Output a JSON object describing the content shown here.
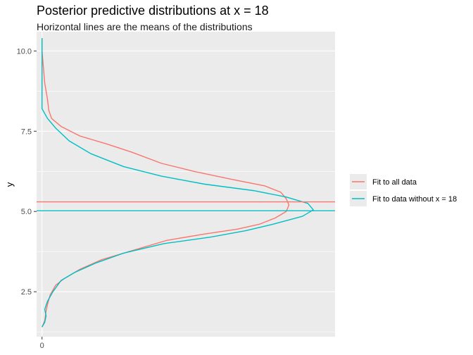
{
  "chart_data": {
    "type": "line",
    "title": "Posterior predictive distributions at x = 18",
    "subtitle": "Horizontal lines are the means of the distributions",
    "xlabel": "",
    "ylabel": "y",
    "ylim": [
      1.1,
      10.6
    ],
    "xlim": [
      -0.02,
      1.08
    ],
    "y_ticks": [
      2.5,
      5.0,
      7.5,
      10.0
    ],
    "y_tick_labels": [
      "2.5",
      "5.0",
      "7.5",
      "10.0"
    ],
    "x_ticks": [
      0
    ],
    "x_tick_labels": [
      "0"
    ],
    "grid": true,
    "legend_position": "right",
    "series": [
      {
        "name": "Fit to all data",
        "color": "#F8766D",
        "mean": 5.3,
        "points": [
          [
            0.0,
            1.4
          ],
          [
            0.01,
            1.6
          ],
          [
            0.015,
            1.9
          ],
          [
            0.02,
            2.1
          ],
          [
            0.03,
            2.4
          ],
          [
            0.05,
            2.7
          ],
          [
            0.08,
            2.9
          ],
          [
            0.14,
            3.2
          ],
          [
            0.22,
            3.5
          ],
          [
            0.34,
            3.8
          ],
          [
            0.46,
            4.1
          ],
          [
            0.6,
            4.3
          ],
          [
            0.72,
            4.45
          ],
          [
            0.8,
            4.6
          ],
          [
            0.86,
            4.8
          ],
          [
            0.9,
            5.0
          ],
          [
            0.91,
            5.2
          ],
          [
            0.9,
            5.4
          ],
          [
            0.88,
            5.6
          ],
          [
            0.82,
            5.8
          ],
          [
            0.7,
            6.0
          ],
          [
            0.56,
            6.25
          ],
          [
            0.44,
            6.5
          ],
          [
            0.33,
            6.85
          ],
          [
            0.24,
            7.1
          ],
          [
            0.14,
            7.35
          ],
          [
            0.07,
            7.65
          ],
          [
            0.035,
            7.9
          ],
          [
            0.025,
            8.15
          ],
          [
            0.02,
            8.5
          ],
          [
            0.01,
            9.0
          ],
          [
            0.005,
            9.5
          ],
          [
            0.0,
            10.0
          ],
          [
            0.0,
            10.4
          ]
        ]
      },
      {
        "name": "Fit to data without x = 18",
        "color": "#00BFC4",
        "mean": 5.02,
        "points": [
          [
            0.0,
            1.4
          ],
          [
            0.01,
            1.55
          ],
          [
            0.015,
            1.75
          ],
          [
            0.01,
            1.95
          ],
          [
            0.02,
            2.2
          ],
          [
            0.04,
            2.5
          ],
          [
            0.07,
            2.85
          ],
          [
            0.12,
            3.1
          ],
          [
            0.2,
            3.4
          ],
          [
            0.3,
            3.7
          ],
          [
            0.45,
            4.0
          ],
          [
            0.62,
            4.2
          ],
          [
            0.75,
            4.4
          ],
          [
            0.85,
            4.6
          ],
          [
            0.96,
            4.85
          ],
          [
            1.0,
            5.05
          ],
          [
            0.98,
            5.25
          ],
          [
            0.9,
            5.45
          ],
          [
            0.78,
            5.65
          ],
          [
            0.6,
            5.85
          ],
          [
            0.44,
            6.1
          ],
          [
            0.3,
            6.4
          ],
          [
            0.18,
            6.8
          ],
          [
            0.1,
            7.2
          ],
          [
            0.05,
            7.6
          ],
          [
            0.02,
            7.9
          ],
          [
            0.0,
            8.2
          ],
          [
            0.0,
            8.8
          ],
          [
            0.0,
            9.5
          ],
          [
            0.0,
            10.4
          ]
        ]
      }
    ]
  }
}
